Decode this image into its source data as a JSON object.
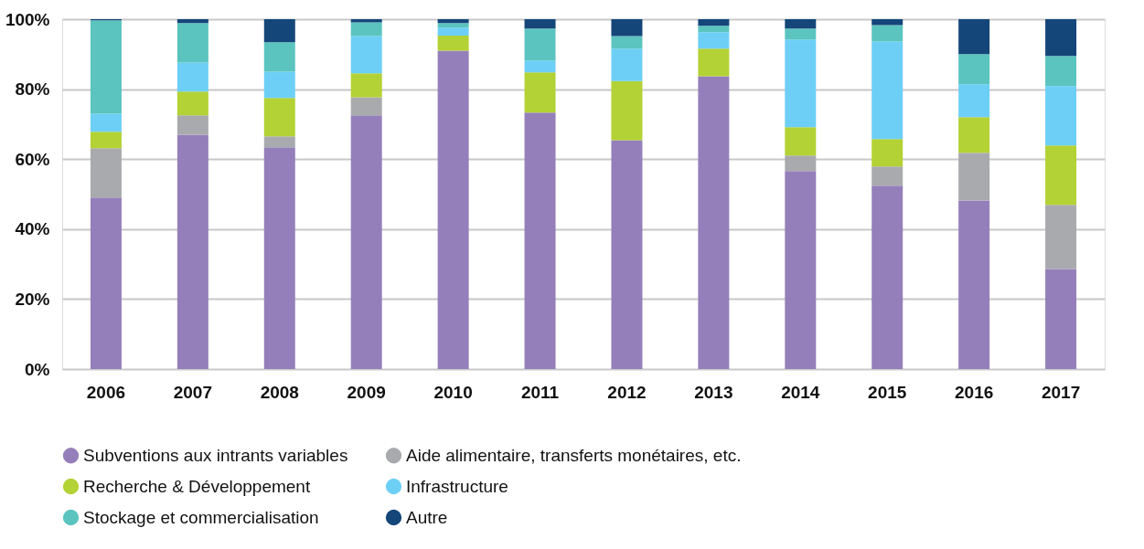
{
  "chart_data": {
    "type": "bar",
    "stacked": true,
    "categories": [
      "2006",
      "2007",
      "2008",
      "2009",
      "2010",
      "2011",
      "2012",
      "2013",
      "2014",
      "2015",
      "2016",
      "2017"
    ],
    "series": [
      {
        "name": "Subventions aux intrants variables",
        "color": "#957fba",
        "values": [
          49.0,
          67.0,
          63.4,
          72.5,
          91.0,
          73.3,
          65.4,
          83.7,
          56.6,
          52.4,
          48.2,
          28.6
        ]
      },
      {
        "name": "Aide alimentaire, transferts monétaires, etc.",
        "color": "#a9aaad",
        "values": [
          14.1,
          5.5,
          3.1,
          5.2,
          0,
          0,
          0,
          0,
          4.4,
          5.5,
          13.6,
          18.3
        ]
      },
      {
        "name": "Recherche & Développement",
        "color": "#b3d235",
        "values": [
          4.7,
          6.8,
          11.0,
          6.8,
          4.3,
          11.5,
          16.9,
          7.9,
          8.1,
          7.8,
          10.2,
          17.0
        ]
      },
      {
        "name": "Infrastructure",
        "color": "#6dcff6",
        "values": [
          5.2,
          8.3,
          7.5,
          10.7,
          2.3,
          3.4,
          9.3,
          4.7,
          25.1,
          27.9,
          9.4,
          17.0
        ]
      },
      {
        "name": "Stockage et commercialisation",
        "color": "#5bc4bf",
        "values": [
          26.7,
          11.3,
          8.4,
          3.9,
          1.3,
          9.1,
          3.6,
          1.8,
          3.1,
          4.7,
          8.6,
          8.6
        ]
      },
      {
        "name": "Autre",
        "color": "#15467a",
        "values": [
          0.3,
          1.1,
          6.6,
          0.9,
          1.1,
          2.7,
          4.8,
          1.9,
          2.7,
          1.7,
          10.0,
          10.5
        ]
      }
    ],
    "ylim": [
      0,
      100
    ],
    "yticks": [
      {
        "value": 0,
        "label": "0%"
      },
      {
        "value": 20,
        "label": "20%"
      },
      {
        "value": 40,
        "label": "40%"
      },
      {
        "value": 60,
        "label": "60%"
      },
      {
        "value": 80,
        "label": "80%"
      },
      {
        "value": 100,
        "label": "100%"
      }
    ],
    "grid": "y",
    "legend": "bottom",
    "marker": "circle"
  }
}
